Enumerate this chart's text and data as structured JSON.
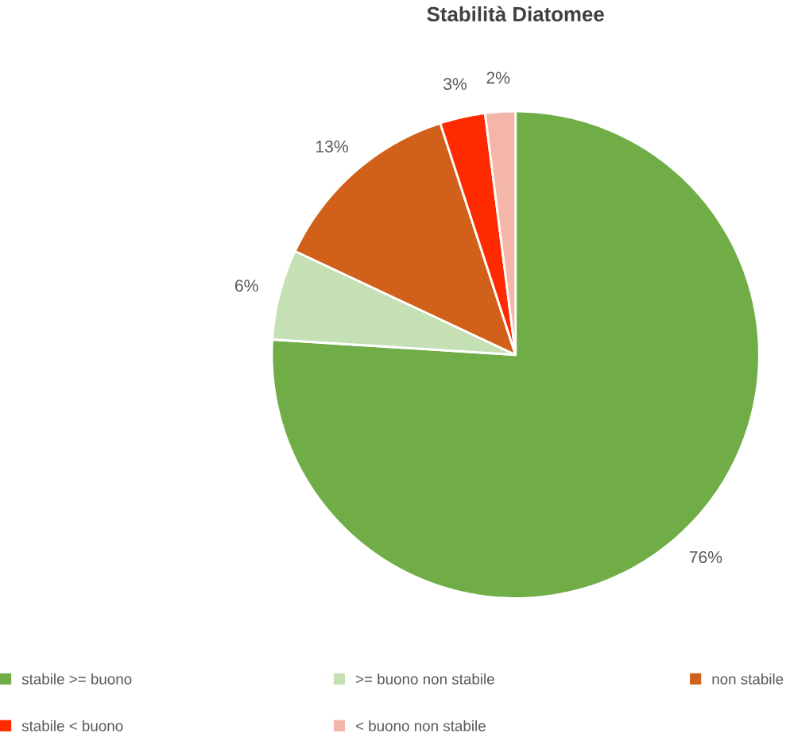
{
  "chart_data": {
    "type": "pie",
    "title": "Stabilità Diatomee",
    "categories": [
      "stabile >= buono",
      ">= buono non stabile",
      "non stabile",
      "stabile < buono",
      "< buono non stabile"
    ],
    "values": [
      76,
      6,
      13,
      3,
      2
    ],
    "value_labels": [
      "76%",
      "6%",
      "13%",
      "3%",
      "2%"
    ],
    "colors": [
      "#70ad47",
      "#c5e0b4",
      "#d0601a",
      "#ff2a00",
      "#f4b6a8"
    ],
    "legend": "bottom"
  }
}
